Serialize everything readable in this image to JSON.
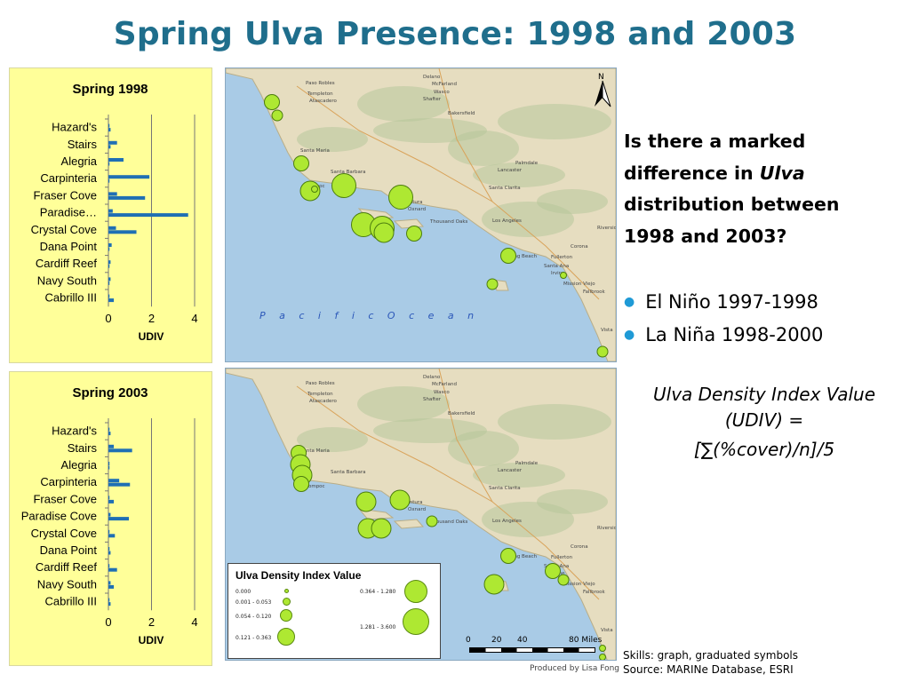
{
  "slide": {
    "title": "Spring Ulva Presence: 1998 and 2003",
    "question_lines": [
      "Is there a marked",
      "difference in",
      "Ulva",
      "distribution between",
      "1998 and 2003?"
    ],
    "bullets": [
      "El Niño 1997-1998",
      "La Niña 1998-2000"
    ],
    "formula_lines": [
      "Ulva Density Index Value",
      "(UDIV) =",
      "[∑(%cover)/n]/5"
    ],
    "skills": "Skills: graph, graduated symbols",
    "source": "Source: MARINe Database, ESRI",
    "credit": "Produced by Lisa Fong",
    "colors": {
      "title": "#1f6e8c",
      "bar": "#1f6fb4",
      "panel": "#ffff99",
      "bullet": "#1f9ad6",
      "symbol": "#aee832"
    }
  },
  "chart_data": [
    {
      "type": "bar",
      "orientation": "horizontal",
      "title": "Spring 1998",
      "xlabel": "UDIV",
      "ylabel": "",
      "xlim": [
        0,
        4
      ],
      "xticks": [
        0,
        2,
        4
      ],
      "grid": true,
      "categories": [
        "Hazard's",
        "Stairs",
        "Alegria",
        "Carpinteria",
        "Fraser Cove",
        "Paradise…",
        "Crystal Cove",
        "Dana Point",
        "Cardiff Reef",
        "Navy South",
        "Cabrillo III"
      ],
      "series": [
        {
          "values": [
            0.05,
            0.4,
            0.7,
            1.9,
            0.4,
            0.2,
            0.35,
            0.15,
            0.1,
            0.1,
            0.05
          ]
        },
        {
          "values": [
            0.1,
            0.1,
            0.05,
            0.05,
            1.7,
            3.7,
            1.3,
            0.05,
            0.05,
            0.05,
            0.25
          ]
        }
      ]
    },
    {
      "type": "bar",
      "orientation": "horizontal",
      "title": "Spring 2003",
      "xlabel": "UDIV",
      "ylabel": "",
      "xlim": [
        0,
        4
      ],
      "xticks": [
        0,
        2,
        4
      ],
      "grid": true,
      "categories": [
        "Hazard's",
        "Stairs",
        "Alegria",
        "Carpinteria",
        "Fraser Cove",
        "Paradise Cove",
        "Crystal Cove",
        "Dana Point",
        "Cardiff Reef",
        "Navy South",
        "Cabrillo III"
      ],
      "series": [
        {
          "values": [
            0.05,
            0.25,
            0.05,
            0.5,
            0.05,
            0.1,
            0.05,
            0.05,
            0.05,
            0.1,
            0.05
          ]
        },
        {
          "values": [
            0.1,
            1.1,
            0.05,
            1.0,
            0.25,
            0.95,
            0.3,
            0.1,
            0.4,
            0.25,
            0.1
          ]
        }
      ]
    }
  ],
  "maps": {
    "ocean_label": "P a c i f i c   O c e a n",
    "north_label": "N",
    "places": [
      "Delano",
      "McFarland",
      "Paso Robles",
      "Wasco",
      "Templeton",
      "Shafter",
      "Atascadero",
      "Bakersfield",
      "Santa Maria",
      "Lompoc",
      "Santa Barbara",
      "Oxnard",
      "Ventura",
      "Thousand Oaks",
      "Los Angeles",
      "Santa Clarita",
      "Lancaster",
      "Palmdale",
      "Long Beach",
      "Santa Ana",
      "Irvine",
      "Riverside",
      "Corona",
      "Fullerton",
      "Mission Viejo",
      "Fallbrook",
      "Vista"
    ],
    "scale": {
      "labels": [
        "0",
        "20",
        "40",
        "80 Miles"
      ]
    },
    "legend": {
      "title": "Ulva Density Index Value",
      "classes": [
        "0.000",
        "0.001 - 0.053",
        "0.054 - 0.120",
        "0.121 - 0.363",
        "0.364 - 1.280",
        "1.281 - 3.600"
      ]
    }
  },
  "map_symbols": {
    "1998": [
      0.2,
      0.06,
      0.3,
      0.9,
      0.05,
      1.5,
      2.4,
      3.6,
      2.9,
      0.4,
      0.2,
      0.15,
      0.1,
      0.05,
      0.1
    ],
    "2003": [
      0.25,
      0.6,
      0.9,
      0.3,
      0.9,
      1.0,
      0.7,
      0.6,
      0.1,
      0.3,
      0.4,
      0.15,
      0.1,
      0.05,
      0.05
    ]
  }
}
